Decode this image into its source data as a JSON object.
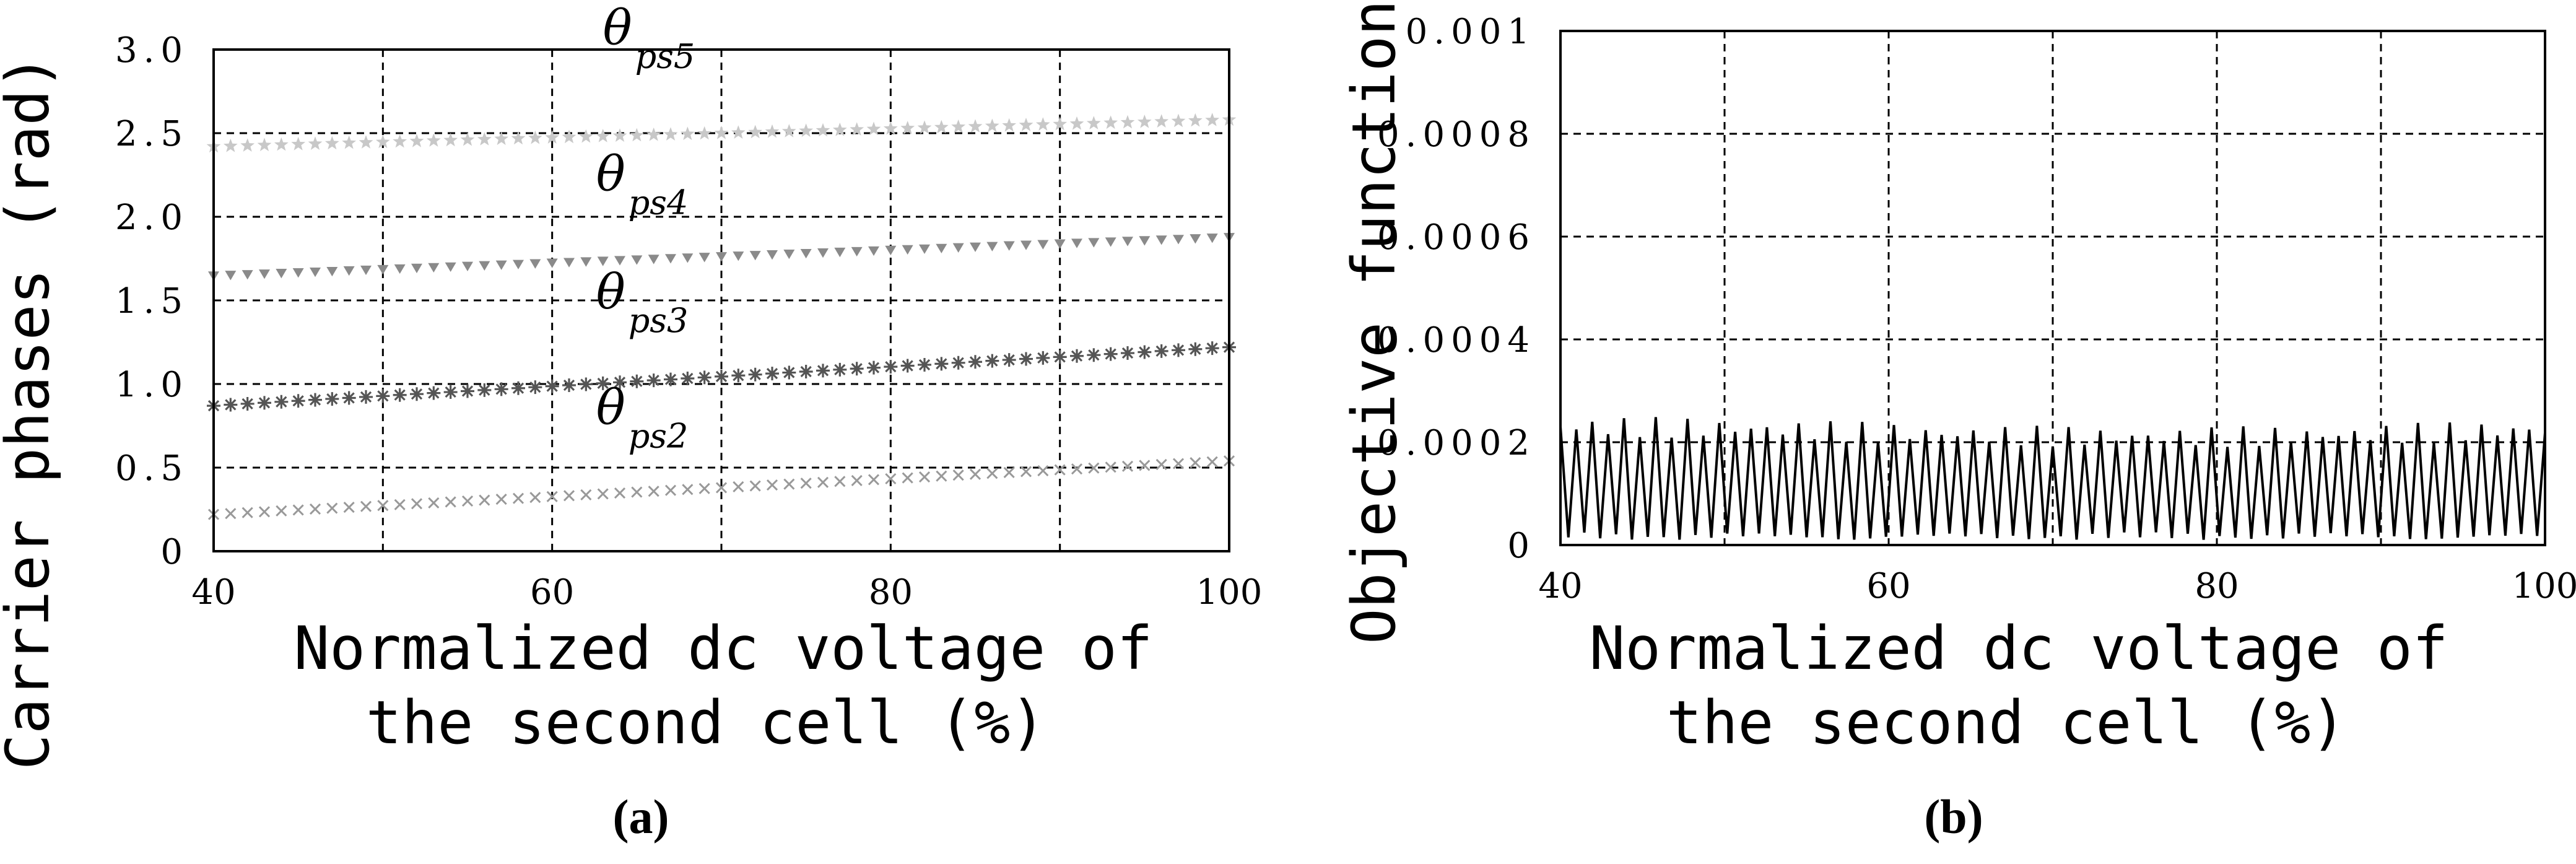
{
  "chart_data": [
    {
      "type": "scatter",
      "panel_label": "(a)",
      "xlabel_line1": "Normalized dc voltage of",
      "xlabel_line2": "the second cell (%)",
      "ylabel": "Carrier phases (rad)",
      "xlim": [
        40,
        100
      ],
      "ylim": [
        0,
        3.0
      ],
      "x_ticks": [
        40,
        60,
        80,
        100
      ],
      "x_tick_labels": [
        "40",
        "60",
        "80",
        "100"
      ],
      "y_ticks": [
        0,
        0.5,
        1.0,
        1.5,
        2.0,
        2.5,
        3.0
      ],
      "y_tick_labels": [
        "0",
        "0.5",
        "1.0",
        "1.5",
        "2.0",
        "2.5",
        "3.0"
      ],
      "grid": true,
      "series": [
        {
          "name": "θps5",
          "symbol": "θ",
          "subscript": "ps5",
          "marker": "star",
          "color": "#c8c8c8",
          "x": [
            40,
            100
          ],
          "y": [
            2.42,
            2.58
          ]
        },
        {
          "name": "θps4",
          "symbol": "θ",
          "subscript": "ps4",
          "marker": "triangle-down",
          "color": "#8a8a8a",
          "x": [
            40,
            100
          ],
          "y": [
            1.65,
            1.88
          ]
        },
        {
          "name": "θps3",
          "symbol": "θ",
          "subscript": "ps3",
          "marker": "plus-star",
          "color": "#555555",
          "x": [
            40,
            100
          ],
          "y": [
            0.87,
            1.22
          ]
        },
        {
          "name": "θps2",
          "symbol": "θ",
          "subscript": "ps2",
          "marker": "x",
          "color": "#999999",
          "x": [
            40,
            100
          ],
          "y": [
            0.22,
            0.54
          ]
        }
      ]
    },
    {
      "type": "line",
      "panel_label": "(b)",
      "xlabel_line1": "Normalized dc voltage of",
      "xlabel_line2": "the second cell (%)",
      "ylabel": "Objective function",
      "xlim": [
        40,
        100
      ],
      "ylim": [
        0,
        0.001
      ],
      "x_ticks": [
        40,
        60,
        80,
        100
      ],
      "x_tick_labels": [
        "40",
        "60",
        "80",
        "100"
      ],
      "y_ticks": [
        0,
        0.0002,
        0.0004,
        0.0006,
        0.0008,
        0.001
      ],
      "y_tick_labels": [
        "0",
        "0.0002",
        "0.0004",
        "0.0006",
        "0.0008",
        "0.001"
      ],
      "grid": true,
      "series": [
        {
          "color": "#000000",
          "oscillation_min": 1e-05,
          "oscillation_max": 0.00025,
          "cycles": 62
        }
      ]
    }
  ]
}
